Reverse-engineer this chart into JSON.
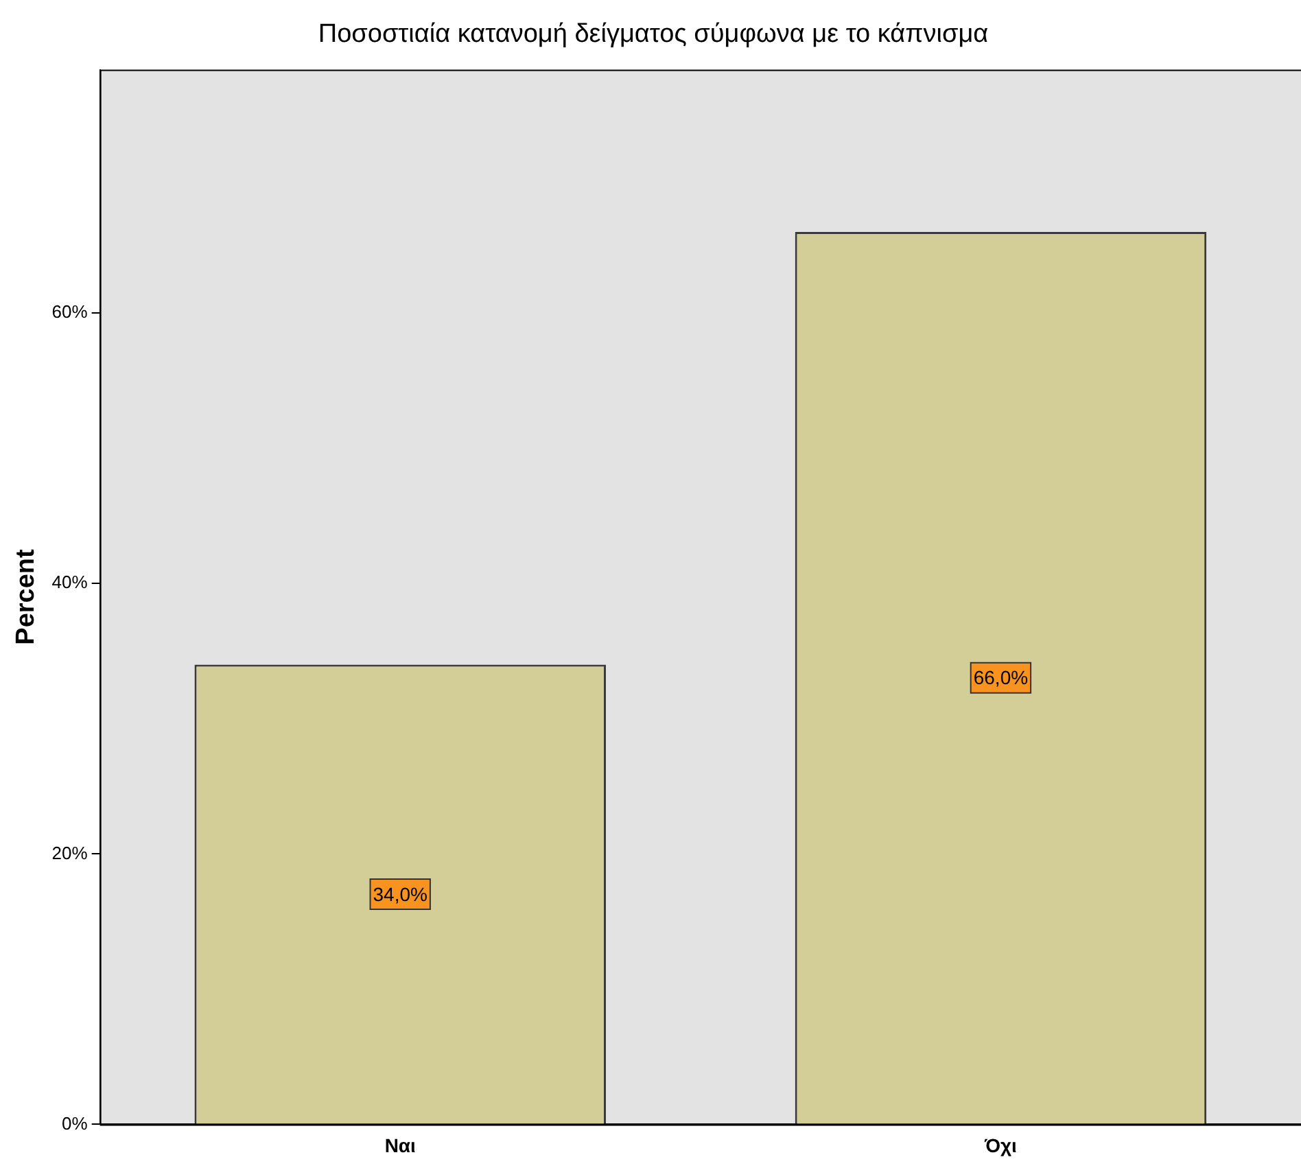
{
  "chart_data": {
    "type": "bar",
    "title": "Ποσοστιαία κατανομή δείγματος σύμφωνα με το κάπνισμα",
    "ylabel": "Percent",
    "categories": [
      "Ναι",
      "Όχι"
    ],
    "values": [
      34,
      66
    ],
    "value_labels": [
      "34,0%",
      "66,0%"
    ],
    "color": "#d3cd98",
    "ylim": [
      0,
      78
    ],
    "yticks": [
      {
        "value": 0,
        "label": "0%"
      },
      {
        "value": 20,
        "label": "20%"
      },
      {
        "value": 40,
        "label": "40%"
      },
      {
        "value": 60,
        "label": "60%"
      }
    ],
    "grid": false,
    "legend": false
  }
}
